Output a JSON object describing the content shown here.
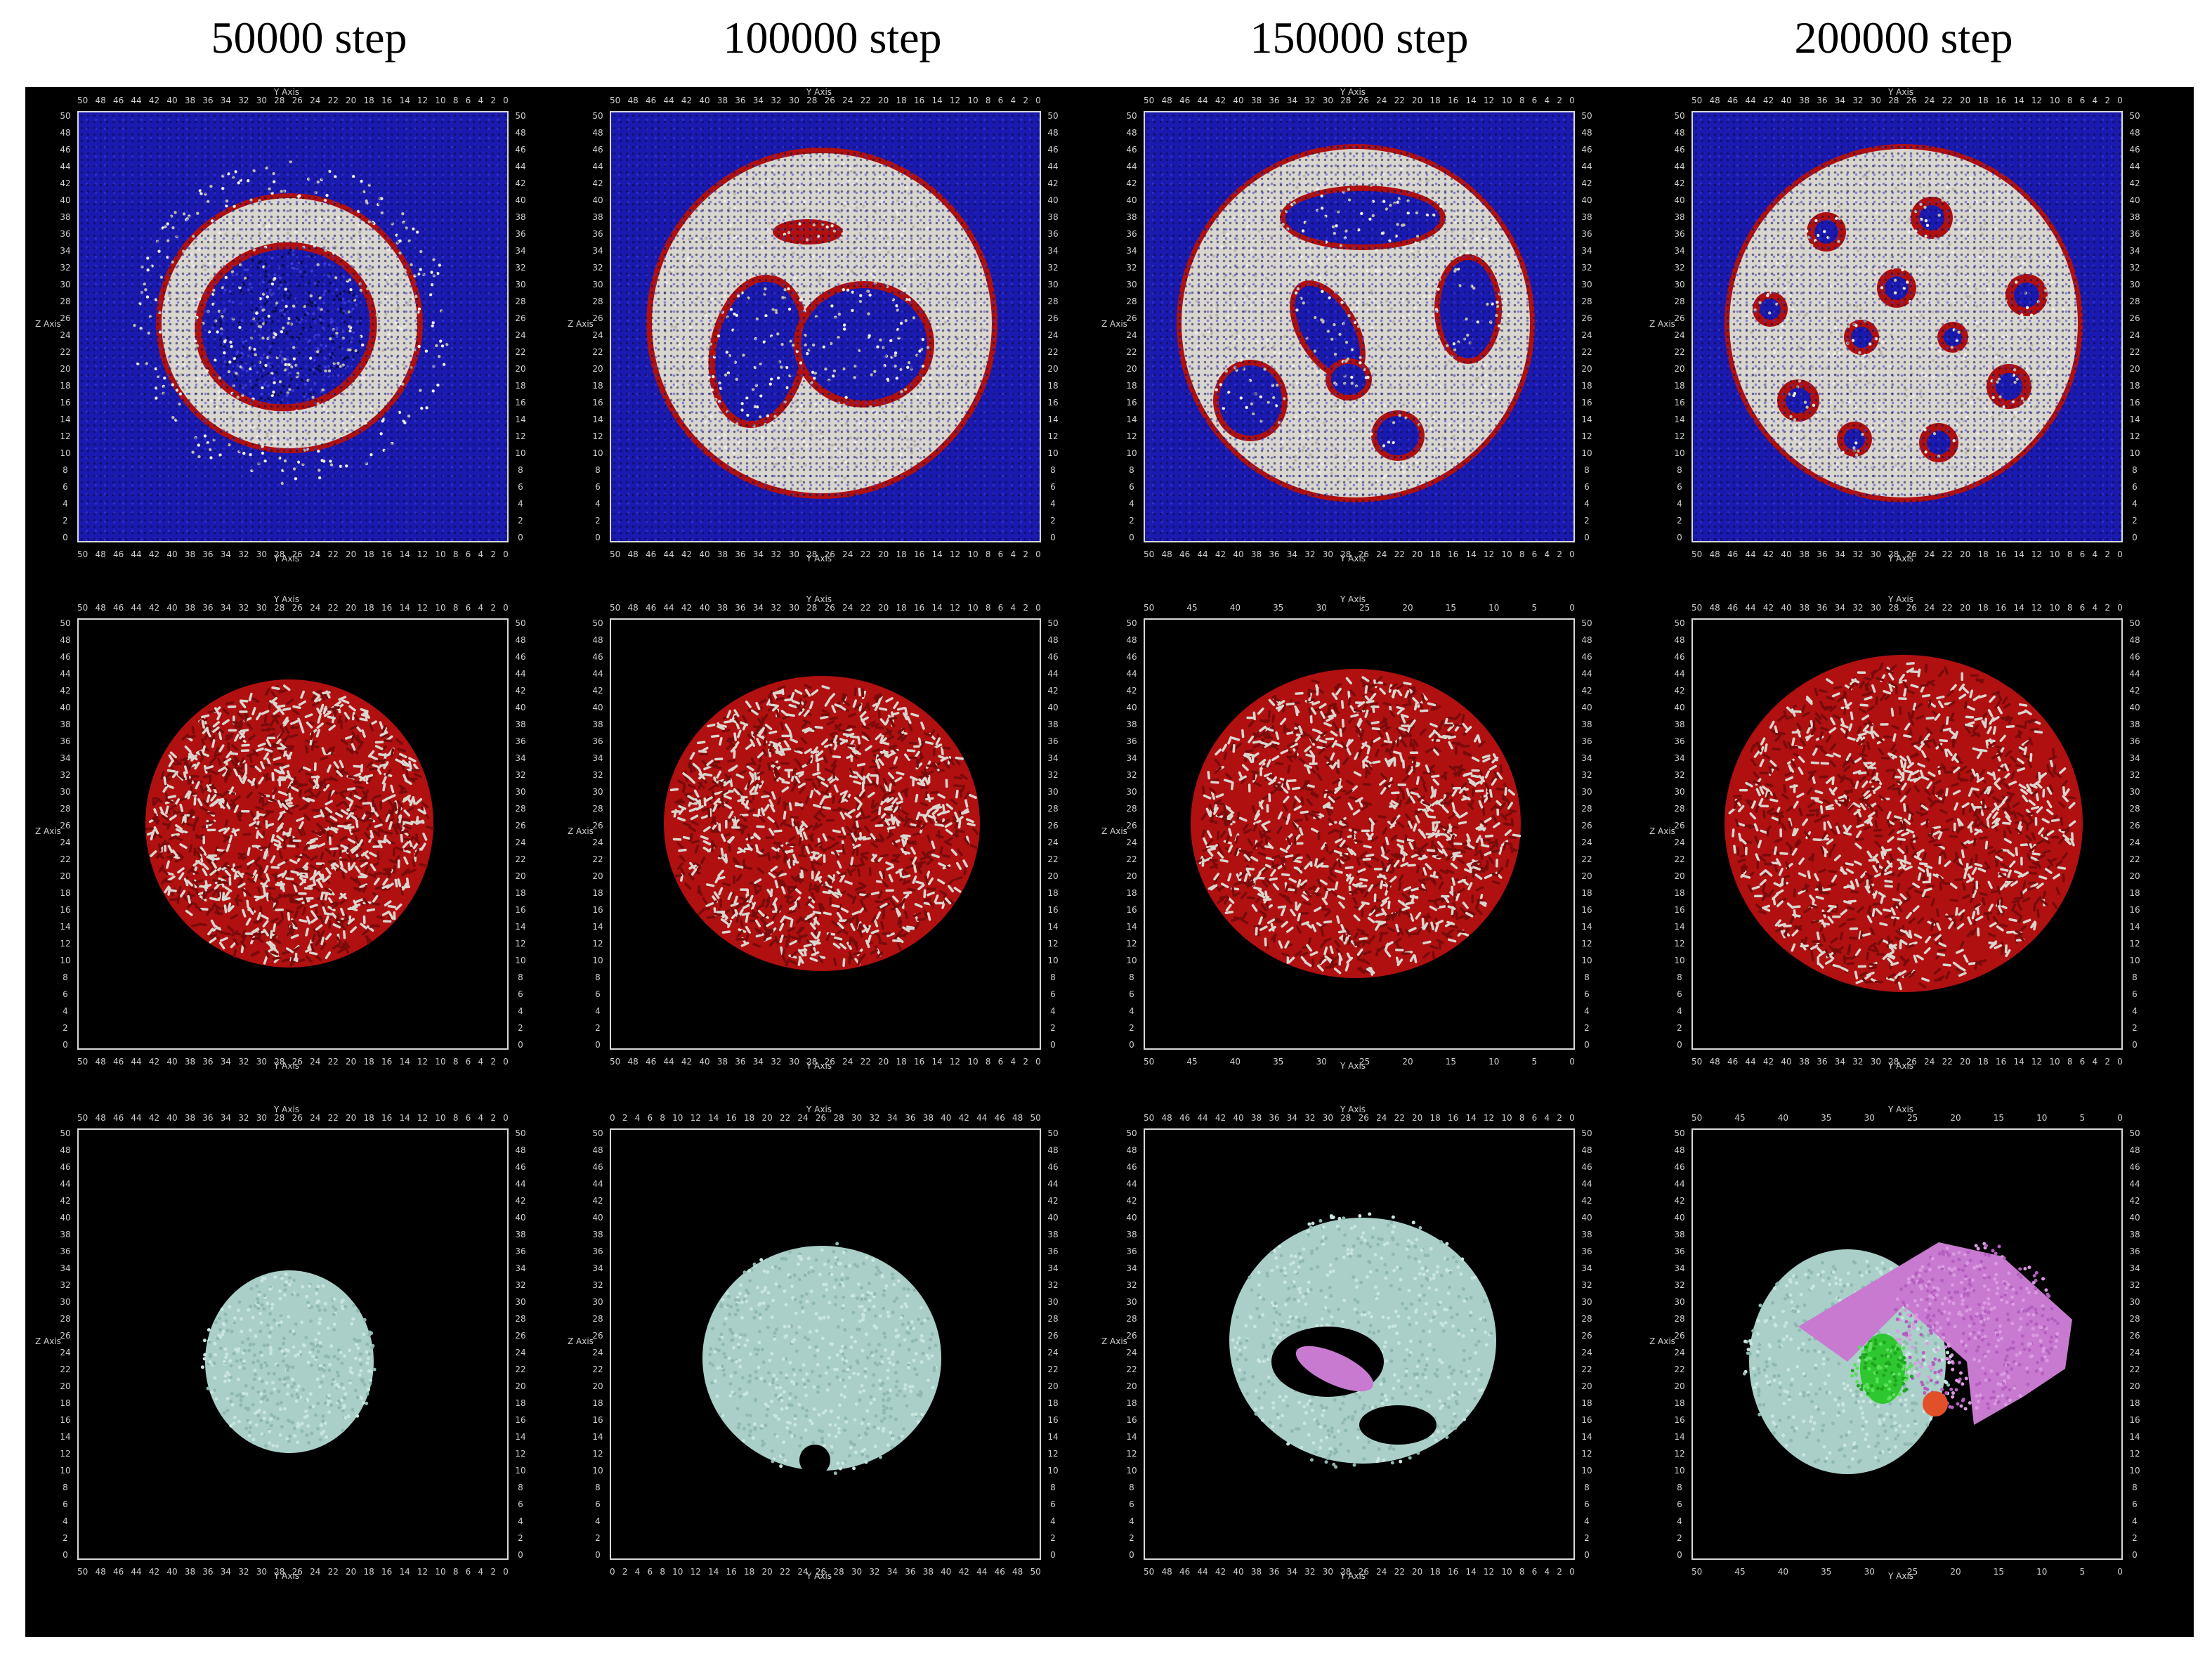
{
  "columns": [
    {
      "title": "50000 step"
    },
    {
      "title": "100000 step"
    },
    {
      "title": "150000 step"
    },
    {
      "title": "200000 step"
    }
  ],
  "axis": {
    "y_label": "Y Axis",
    "z_label": "Z Axis"
  },
  "colors": {
    "water": "#1a1ab0",
    "lipid_tail": "#d9d6cf",
    "lipid_head": "#b01010",
    "cluster_cyan": "#a9cfc8",
    "cluster_magenta": "#c77ad0",
    "cluster_green": "#2fc72f",
    "cluster_orange": "#e2502a"
  },
  "ticks": {
    "descending": [
      "50",
      "48",
      "46",
      "44",
      "42",
      "40",
      "38",
      "36",
      "34",
      "32",
      "30",
      "28",
      "26",
      "24",
      "22",
      "20",
      "18",
      "16",
      "14",
      "12",
      "10",
      "8",
      "6",
      "4",
      "2",
      "0"
    ],
    "ascending": [
      "0",
      "2",
      "4",
      "6",
      "8",
      "10",
      "12",
      "14",
      "16",
      "18",
      "20",
      "22",
      "24",
      "26",
      "28",
      "30",
      "32",
      "34",
      "36",
      "38",
      "40",
      "42",
      "44",
      "46",
      "48",
      "50"
    ],
    "coarse": [
      "50",
      "45",
      "40",
      "35",
      "30",
      "25",
      "20",
      "15",
      "10",
      "5",
      "0"
    ]
  }
}
